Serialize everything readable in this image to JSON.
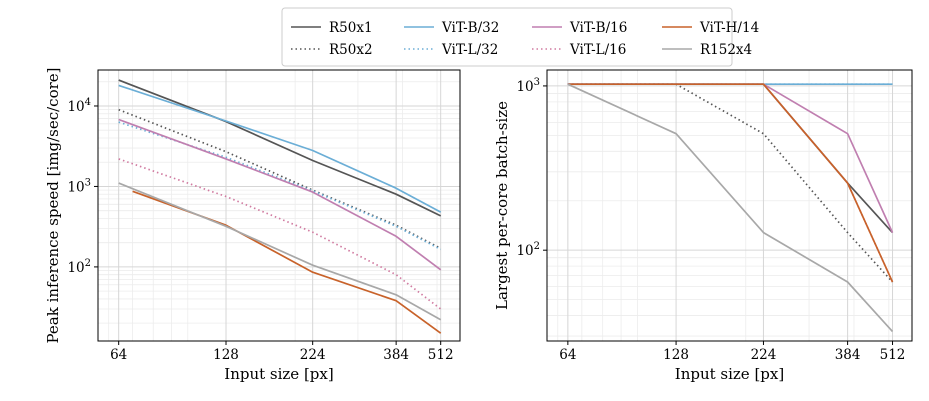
{
  "legend": {
    "position": "top-center",
    "entries": [
      {
        "name": "R50x1",
        "color": "#555555",
        "dash": "solid"
      },
      {
        "name": "R50x2",
        "color": "#555555",
        "dash": "dotted"
      },
      {
        "name": "ViT-B/32",
        "color": "#6baed6",
        "dash": "solid"
      },
      {
        "name": "ViT-L/32",
        "color": "#6baed6",
        "dash": "dotted"
      },
      {
        "name": "ViT-B/16",
        "color": "#c07fb0",
        "dash": "solid"
      },
      {
        "name": "ViT-L/16",
        "color": "#d07aa0",
        "dash": "dotted"
      },
      {
        "name": "ViT-H/14",
        "color": "#c8622a",
        "dash": "solid"
      },
      {
        "name": "R152x4",
        "color": "#a8a8a8",
        "dash": "solid"
      }
    ]
  },
  "chart_data": [
    {
      "type": "line",
      "xlabel": "Input size [px]",
      "ylabel": "Peak inference speed [img/sec/core]",
      "x_scale": "log",
      "y_scale": "log",
      "x_ticks": [
        64,
        128,
        224,
        384,
        512
      ],
      "y_ticks": [
        100,
        1000,
        10000
      ],
      "y_tick_labels": [
        "10^2",
        "10^3",
        "10^4"
      ],
      "xlim": [
        56,
        580
      ],
      "ylim": [
        12,
        28000
      ],
      "grid": true,
      "series": [
        {
          "name": "R50x1",
          "x": [
            64,
            128,
            224,
            384,
            512
          ],
          "y": [
            21000,
            6400,
            2100,
            800,
            430
          ]
        },
        {
          "name": "R50x2",
          "x": [
            64,
            128,
            224,
            384,
            512
          ],
          "y": [
            9000,
            2700,
            900,
            330,
            170
          ]
        },
        {
          "name": "ViT-B/32",
          "x": [
            64,
            128,
            224,
            384,
            512
          ],
          "y": [
            18000,
            6500,
            2800,
            950,
            480
          ]
        },
        {
          "name": "ViT-L/32",
          "x": [
            64,
            128,
            224,
            384,
            512
          ],
          "y": [
            6300,
            2300,
            880,
            320,
            165
          ]
        },
        {
          "name": "ViT-B/16",
          "x": [
            64,
            128,
            224,
            384,
            512
          ],
          "y": [
            6800,
            2200,
            850,
            240,
            92
          ]
        },
        {
          "name": "ViT-L/16",
          "x": [
            64,
            128,
            224,
            384,
            512
          ],
          "y": [
            2200,
            750,
            270,
            80,
            30
          ]
        },
        {
          "name": "ViT-H/14",
          "x": [
            70,
            128,
            224,
            384,
            512
          ],
          "y": [
            870,
            330,
            86,
            38,
            15
          ]
        },
        {
          "name": "R152x4",
          "x": [
            64,
            128,
            224,
            384,
            512
          ],
          "y": [
            1100,
            320,
            105,
            45,
            22
          ]
        }
      ]
    },
    {
      "type": "line",
      "xlabel": "Input size [px]",
      "ylabel": "Largest per-core batch-size",
      "x_scale": "log",
      "y_scale": "log",
      "x_ticks": [
        64,
        128,
        224,
        384,
        512
      ],
      "y_ticks": [
        100,
        1000
      ],
      "y_tick_labels": [
        "10^2",
        "10^3"
      ],
      "xlim": [
        56,
        580
      ],
      "ylim": [
        28,
        1250
      ],
      "grid": true,
      "series": [
        {
          "name": "R50x1",
          "x": [
            64,
            128,
            224,
            384,
            512
          ],
          "y": [
            1024,
            1024,
            1024,
            256,
            128
          ]
        },
        {
          "name": "R50x2",
          "x": [
            64,
            128,
            224,
            384,
            512
          ],
          "y": [
            1024,
            1024,
            512,
            128,
            64
          ]
        },
        {
          "name": "ViT-B/32",
          "x": [
            64,
            128,
            224,
            384,
            512
          ],
          "y": [
            1024,
            1024,
            1024,
            1024,
            1024
          ]
        },
        {
          "name": "ViT-L/32",
          "x": [
            64,
            128,
            224,
            384,
            512
          ],
          "y": [
            1024,
            1024,
            1024,
            1024,
            1024
          ]
        },
        {
          "name": "ViT-B/16",
          "x": [
            64,
            128,
            224,
            384,
            512
          ],
          "y": [
            1024,
            1024,
            1024,
            512,
            128
          ]
        },
        {
          "name": "ViT-L/16",
          "x": [
            64,
            128,
            224,
            384,
            512
          ],
          "y": [
            1024,
            1024,
            1024,
            256,
            64
          ]
        },
        {
          "name": "ViT-H/14",
          "x": [
            64,
            128,
            224,
            384,
            512
          ],
          "y": [
            1024,
            1024,
            1024,
            256,
            64
          ]
        },
        {
          "name": "R152x4",
          "x": [
            64,
            128,
            224,
            384,
            512
          ],
          "y": [
            1024,
            512,
            128,
            64,
            32
          ]
        }
      ]
    }
  ]
}
